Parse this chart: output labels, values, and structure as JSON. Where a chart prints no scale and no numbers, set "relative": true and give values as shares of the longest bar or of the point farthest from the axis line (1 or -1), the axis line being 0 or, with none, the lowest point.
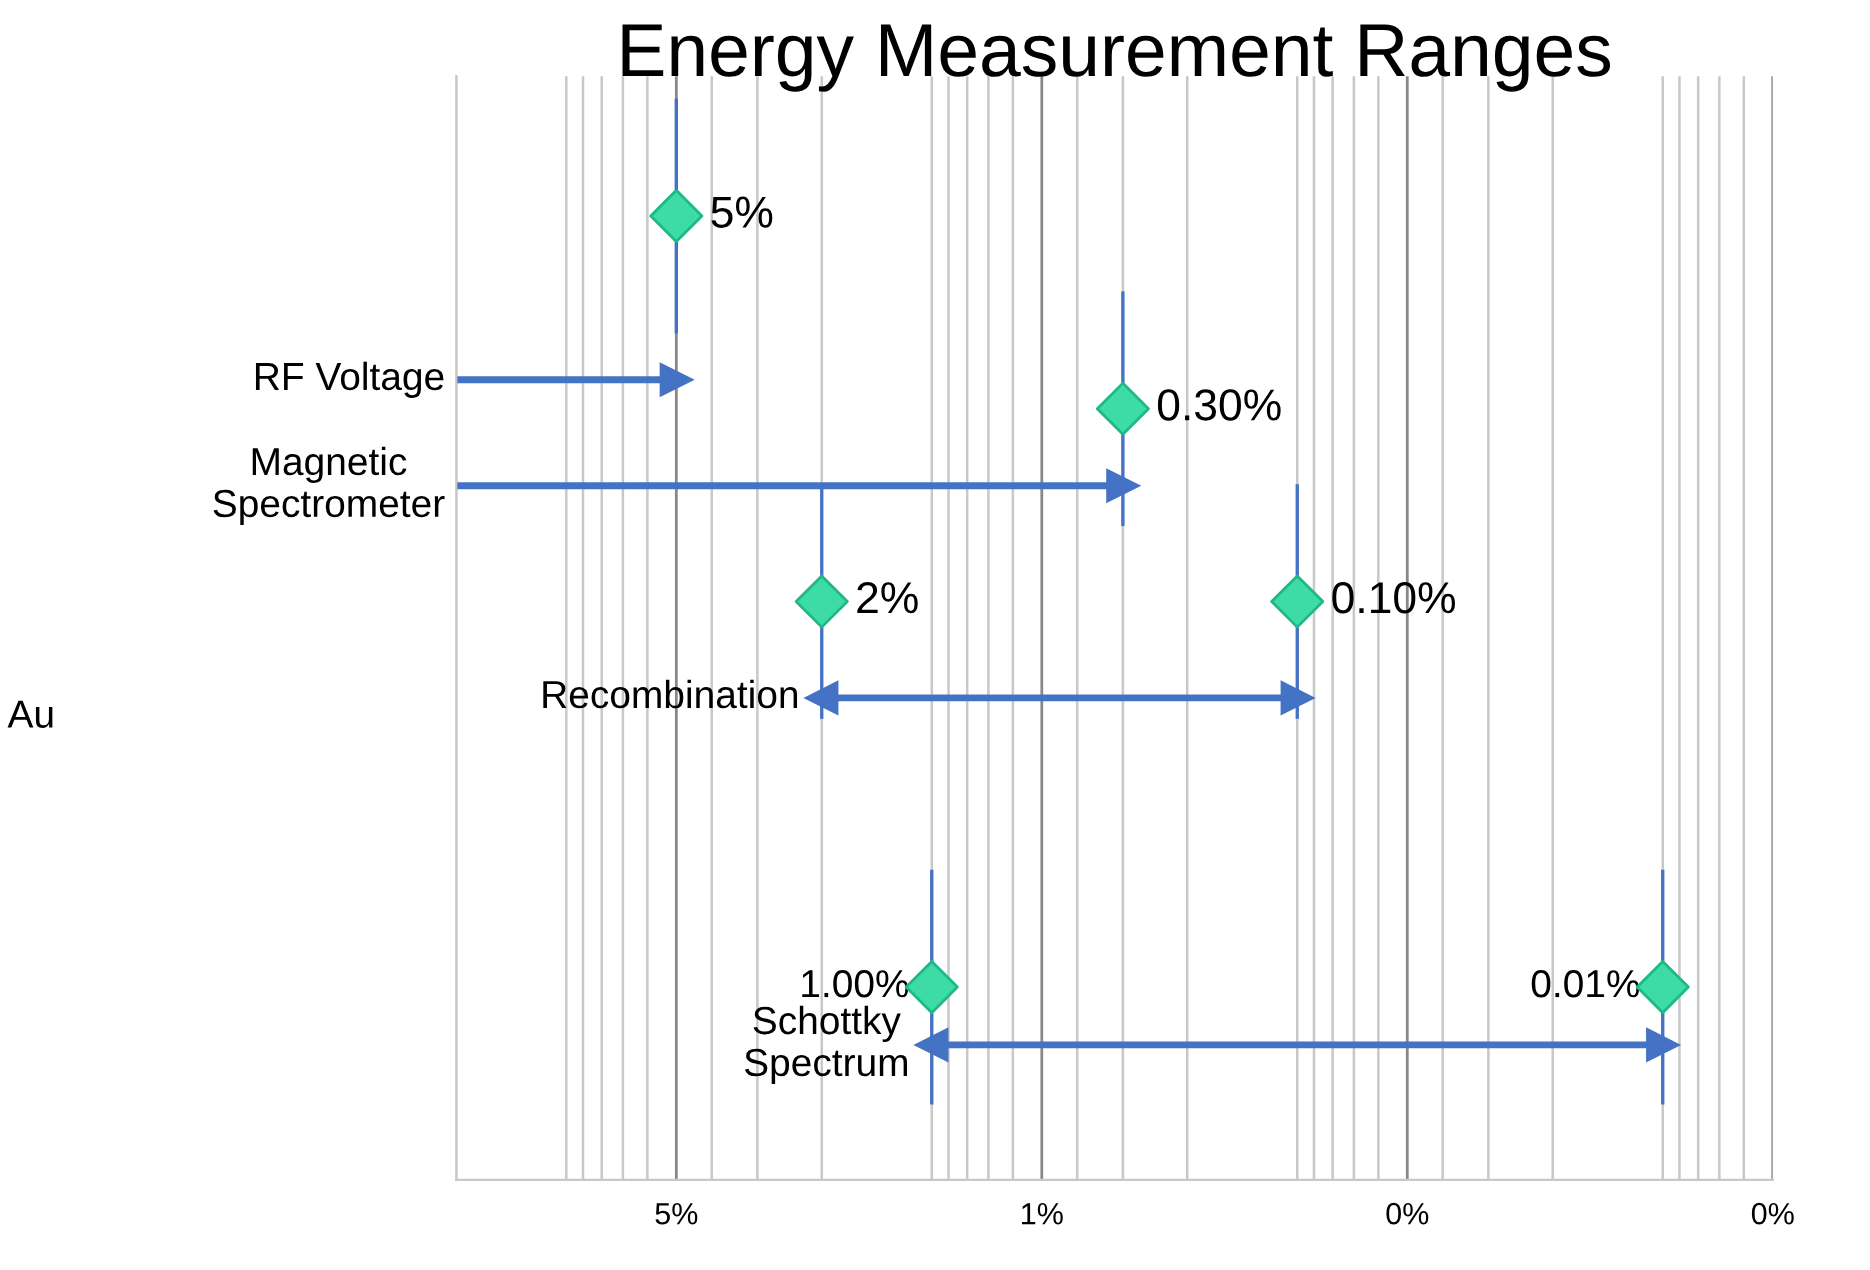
{
  "chart_data": {
    "type": "scatter",
    "title": "Energy Measurement Ranges",
    "relative": true,
    "log": "x",
    "xlim": [
      20,
      0.005
    ],
    "xticks": [
      {
        "value": 5,
        "label": "5%"
      },
      {
        "value": 0.5,
        "label": "1%"
      },
      {
        "value": 0.05,
        "label": "0%"
      },
      {
        "value": 0.005,
        "label": "0%"
      }
    ],
    "grid": "x",
    "tick_labels": "x",
    "annotations": [
      {
        "text": "5%",
        "x": 5,
        "y": 1.0
      },
      {
        "text": "0.30%",
        "x": 0.3,
        "y": 0.8
      },
      {
        "text": "2%",
        "x": 2,
        "y": 0.6
      },
      {
        "text": "0.10%",
        "x": 0.1,
        "y": 0.6
      },
      {
        "text": "1.00%",
        "x": 1,
        "y": 0.2
      },
      {
        "text": "0.01%",
        "x": 0.01,
        "y": 0.2
      },
      {
        "text": "RF Voltage",
        "x": 20,
        "y": 0.83
      },
      {
        "text": "Magnetic\nSpectrometer",
        "x": 20,
        "y": 0.72
      },
      {
        "text": "Recombination",
        "x": 2,
        "y": 0.5
      },
      {
        "text": "Schottky\nSpectrum",
        "x": 1,
        "y": 0.14
      },
      "Au"
    ],
    "series": [
      {
        "color": "#3ddca6",
        "marker": "diamond",
        "x": [
          5,
          0.3,
          2,
          0.1,
          1,
          0.01
        ],
        "values": [
          1.0,
          0.8,
          0.6,
          0.6,
          0.2,
          0.2
        ]
      },
      {
        "type": "line",
        "color": "#4472c4",
        "marker": "triangle",
        "x": [
          20,
          5
        ],
        "values": [
          0.83,
          0.83
        ]
      },
      {
        "type": "line",
        "color": "#4472c4",
        "marker": "triangle",
        "x": [
          20,
          0.3
        ],
        "values": [
          0.72,
          0.72
        ]
      },
      {
        "type": "line",
        "color": "#4472c4",
        "marker": "triangle",
        "x": [
          2,
          0.1
        ],
        "values": [
          0.5,
          0.5
        ]
      },
      {
        "type": "line",
        "color": "#4472c4",
        "marker": "triangle",
        "x": [
          1,
          0.01
        ],
        "values": [
          0.14,
          0.14
        ]
      }
    ]
  }
}
